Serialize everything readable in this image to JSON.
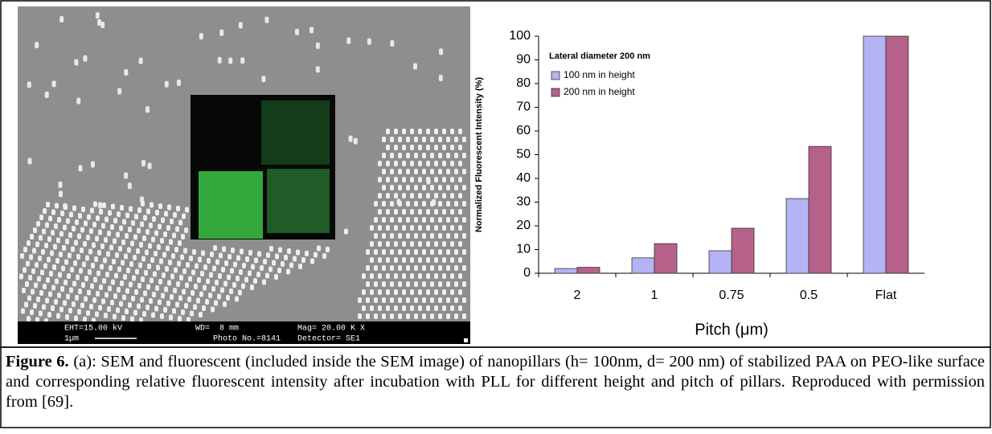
{
  "sem_image": {
    "labels": [
      "EHT=15.00 kV",
      "WD=  8 mm",
      "Mag= 20.00 K X",
      "1µm",
      "Photo No.=8141",
      "Detector= SE1"
    ]
  },
  "chart_data": {
    "type": "bar",
    "categories": [
      "2",
      "1",
      "0.75",
      "0.5",
      "Flat"
    ],
    "series": [
      {
        "name": "100 nm in height",
        "color": "#b4b4f4",
        "values": [
          2,
          6.5,
          9.5,
          31.5,
          100
        ]
      },
      {
        "name": "200 nm in height",
        "color": "#b5618a",
        "values": [
          2.5,
          12.5,
          19,
          53.5,
          100
        ]
      }
    ],
    "legend_title": "Lateral diameter 200 nm",
    "xlabel": "Pitch (μm)",
    "ylabel": "Normalized Fluorescent Intensity (%)",
    "ylim": [
      0,
      100
    ],
    "yticks": [
      0,
      10,
      20,
      30,
      40,
      50,
      60,
      70,
      80,
      90,
      100
    ],
    "grid": false,
    "legend": "upper left"
  },
  "caption": {
    "label": "Figure 6.",
    "text": "(a): SEM and fluorescent (included inside the SEM image) of nanopillars (h= 100nm, d= 200 nm) of stabilized PAA on PEO-like surface and corresponding relative fluorescent intensity after incubation with PLL for different height and pitch of pillars. Reproduced with permission from [69]."
  }
}
